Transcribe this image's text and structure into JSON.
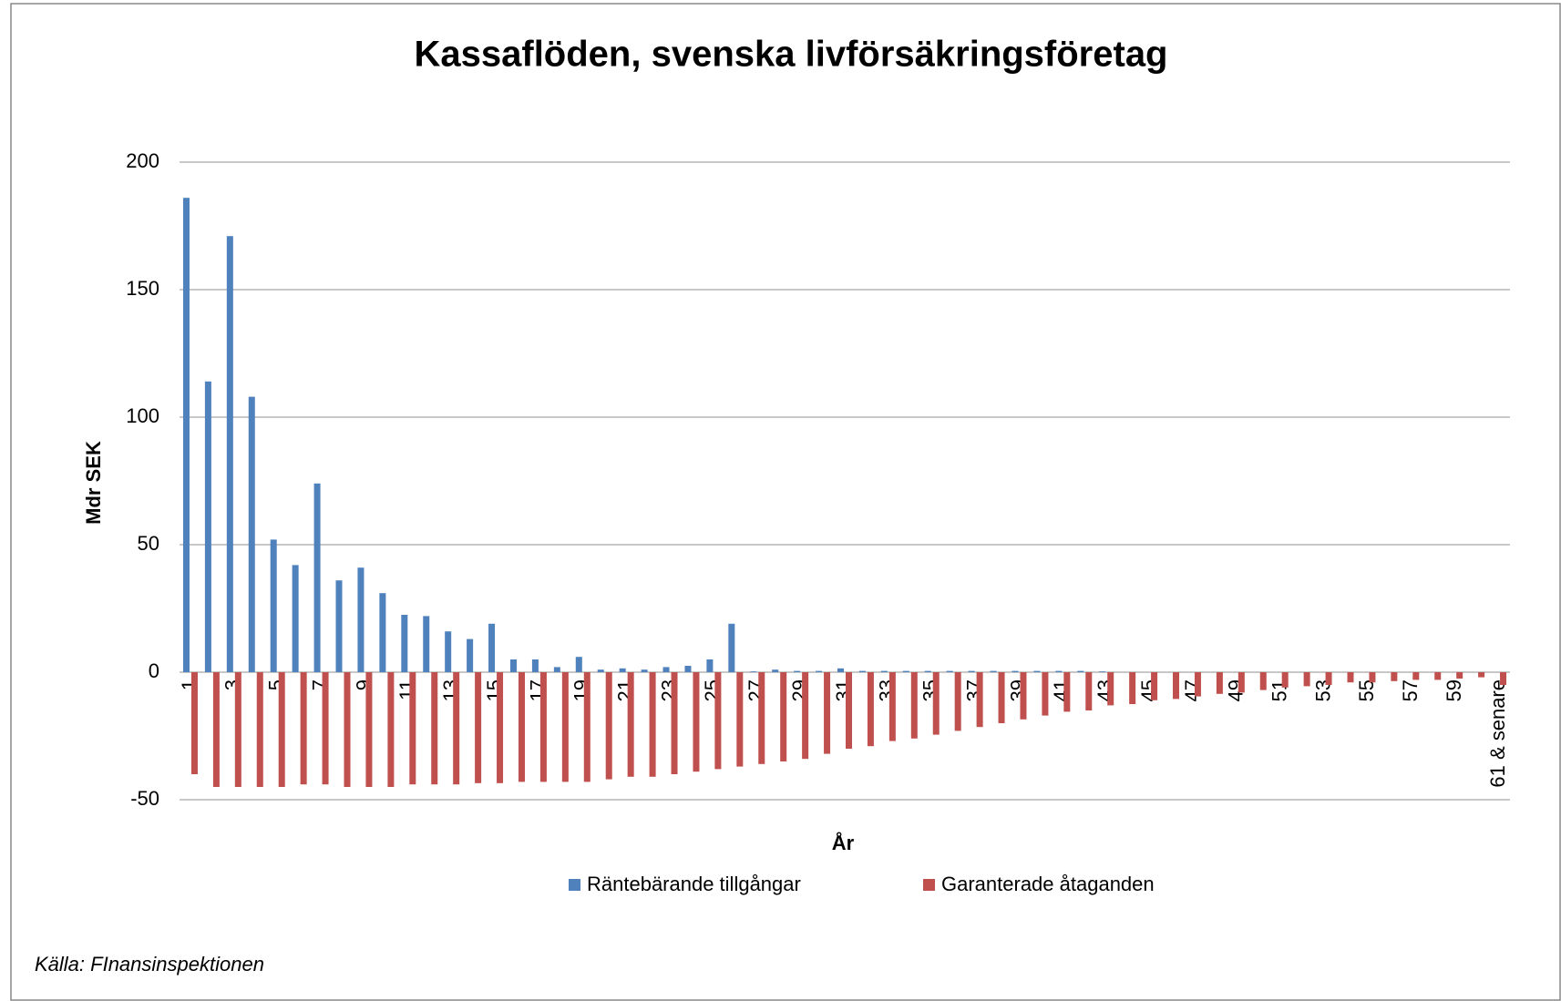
{
  "chart_data": {
    "type": "bar",
    "title": "Kassaflöden, svenska livförsäkringsföretag",
    "y_label": "Mdr SEK",
    "x_label": "År",
    "source": "Källa: FInansinspektionen",
    "categories": [
      "1",
      null,
      "3",
      null,
      "5",
      null,
      "7",
      null,
      "9",
      null,
      "11",
      null,
      "13",
      null,
      "15",
      null,
      "17",
      null,
      "19",
      null,
      "21",
      null,
      "23",
      null,
      "25",
      null,
      "27",
      null,
      "29",
      null,
      "31",
      null,
      "33",
      null,
      "35",
      null,
      "37",
      null,
      "39",
      null,
      "41",
      null,
      "43",
      null,
      "45",
      null,
      "47",
      null,
      "49",
      null,
      "51",
      null,
      "53",
      null,
      "55",
      null,
      "57",
      null,
      "59",
      null,
      "61 & senare"
    ],
    "series": [
      {
        "name": "Räntebärande tillgångar",
        "color": "#4f81bd",
        "values": [
          186,
          114,
          171,
          108,
          52,
          42,
          74,
          36,
          41,
          31,
          22.5,
          22,
          16,
          13,
          19,
          5,
          5,
          2,
          6,
          1,
          1.5,
          1,
          2,
          2.5,
          5,
          19,
          0.3,
          1,
          0.5,
          0.5,
          1.5,
          0.5,
          0.5,
          0.5,
          0.5,
          0.5,
          0.5,
          0.5,
          0.5,
          0.5,
          0.5,
          0.5,
          0.3,
          0,
          0,
          0,
          0,
          0,
          0,
          0,
          0,
          0,
          0,
          0,
          0,
          0,
          0,
          0,
          0,
          0,
          0
        ]
      },
      {
        "name": "Garanterade åtaganden",
        "color": "#c0504d",
        "values": [
          -40,
          -45,
          -45,
          -45,
          -45,
          -44,
          -44,
          -45,
          -45,
          -45,
          -44,
          -44,
          -44,
          -43.5,
          -43.5,
          -43,
          -43,
          -43,
          -43,
          -42,
          -41,
          -41,
          -40,
          -39,
          -38,
          -37,
          -36,
          -35,
          -34,
          -32,
          -30,
          -29,
          -27,
          -26,
          -24.5,
          -23,
          -21.5,
          -20,
          -18.5,
          -17,
          -15.5,
          -15,
          -13,
          -12.5,
          -11,
          -10.5,
          -9.5,
          -8.5,
          -8,
          -7,
          -6,
          -5.5,
          -5,
          -4,
          -4,
          -3.5,
          -3,
          -3,
          -2.5,
          -2,
          -5
        ]
      }
    ],
    "ylim": [
      -50,
      200
    ],
    "yticks": [
      -50,
      0,
      50,
      100,
      150,
      200
    ],
    "grid": true
  }
}
